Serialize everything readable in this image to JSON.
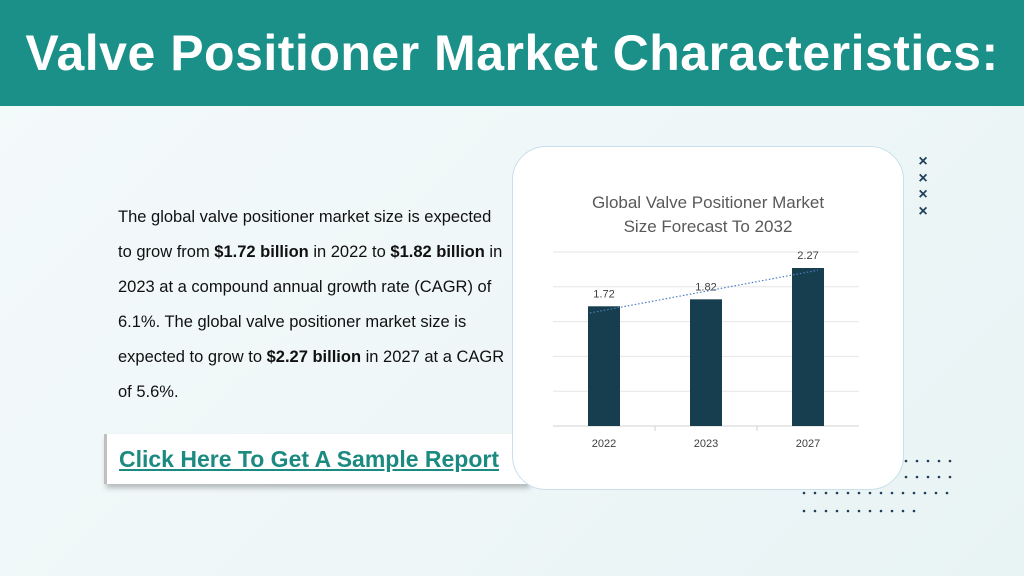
{
  "header": {
    "title": "Valve Positioner Market Characteristics:"
  },
  "body": {
    "p1": "The global valve positioner market size is expected to grow from ",
    "b1": "$1.72 billion",
    "p2": " in 2022 to ",
    "b2": "$1.82 billion",
    "p3": " in 2023 at a compound annual growth rate (CAGR) of 6.1%. The global valve positioner market size is expected to grow to ",
    "b3": "$2.27 billion",
    "p4": " in 2027 at a CAGR of 5.6%."
  },
  "cta": {
    "label": "Click Here To Get A Sample Report"
  },
  "decor": {
    "x_mark": "×"
  },
  "colors": {
    "header": "#1b9088",
    "bar": "#163e4f",
    "link": "#1b8a80",
    "trend": "#4a7fc1"
  },
  "chart_data": {
    "type": "bar",
    "title_line1": "Global Valve Positioner Market",
    "title_line2": "Size Forecast To 2032",
    "categories": [
      "2022",
      "2023",
      "2027"
    ],
    "values": [
      1.72,
      1.82,
      2.27
    ],
    "data_labels": [
      "1.72",
      "1.82",
      "2.27"
    ],
    "ylim": [
      0,
      2.5
    ],
    "grid": true,
    "trendline": true,
    "legend": "none"
  }
}
